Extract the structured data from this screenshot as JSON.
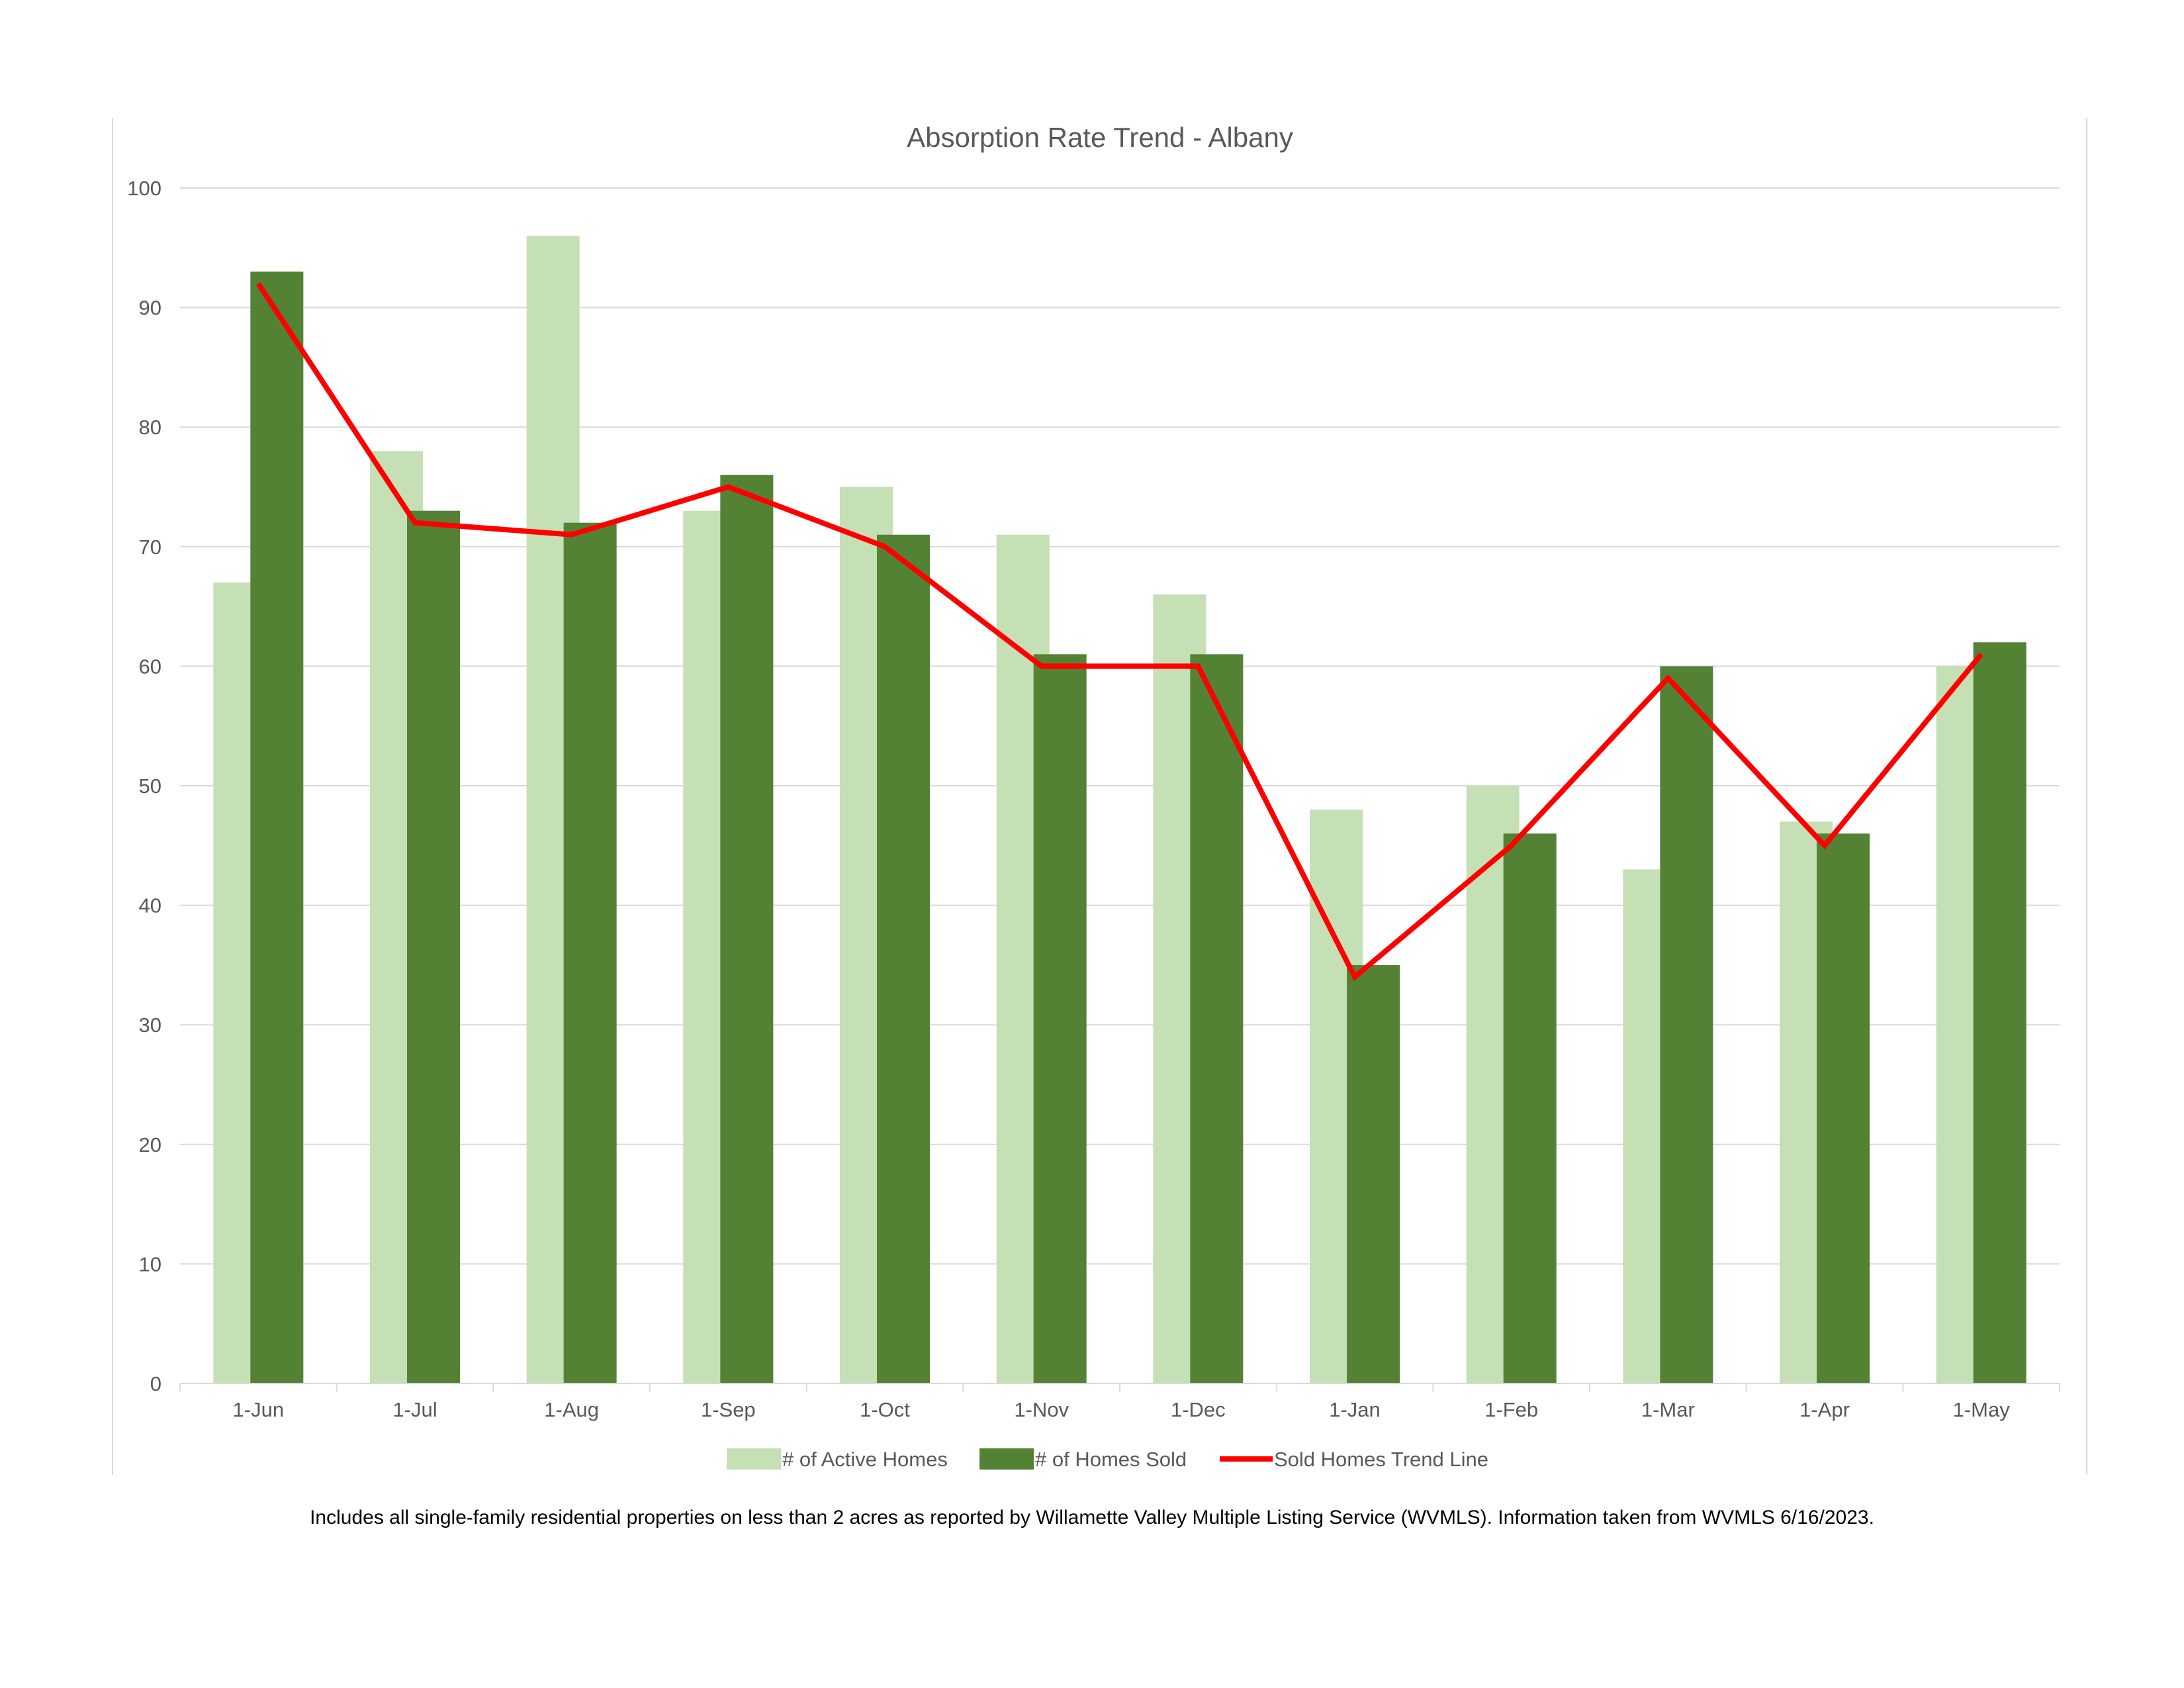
{
  "chart_data": {
    "type": "bar",
    "title": "Absorption Rate Trend - Albany",
    "categories": [
      "1-Jun",
      "1-Jul",
      "1-Aug",
      "1-Sep",
      "1-Oct",
      "1-Nov",
      "1-Dec",
      "1-Jan",
      "1-Feb",
      "1-Mar",
      "1-Apr",
      "1-May"
    ],
    "series": [
      {
        "name": "# of Active Homes",
        "kind": "bar",
        "color": "#c5e0b4",
        "values": [
          67,
          78,
          96,
          73,
          75,
          71,
          66,
          48,
          50,
          43,
          47,
          60
        ]
      },
      {
        "name": "# of Homes Sold",
        "kind": "bar",
        "color": "#548235",
        "values": [
          93,
          73,
          72,
          76,
          71,
          61,
          61,
          35,
          46,
          60,
          46,
          62
        ]
      },
      {
        "name": "Sold Homes Trend Line",
        "kind": "line",
        "color": "#ff0000",
        "values": [
          92,
          72,
          71,
          75,
          70,
          60,
          60,
          34,
          45,
          59,
          45,
          61
        ]
      }
    ],
    "ylim": [
      0,
      100
    ],
    "yticks": [
      0,
      10,
      20,
      30,
      40,
      50,
      60,
      70,
      80,
      90,
      100
    ],
    "grid": true,
    "legend": "bottom"
  },
  "footnote": "Includes all single-family residential properties on less than 2 acres as reported by Willamette Valley Multiple Listing Service (WVMLS). Information taken from WVMLS 6/16/2023."
}
